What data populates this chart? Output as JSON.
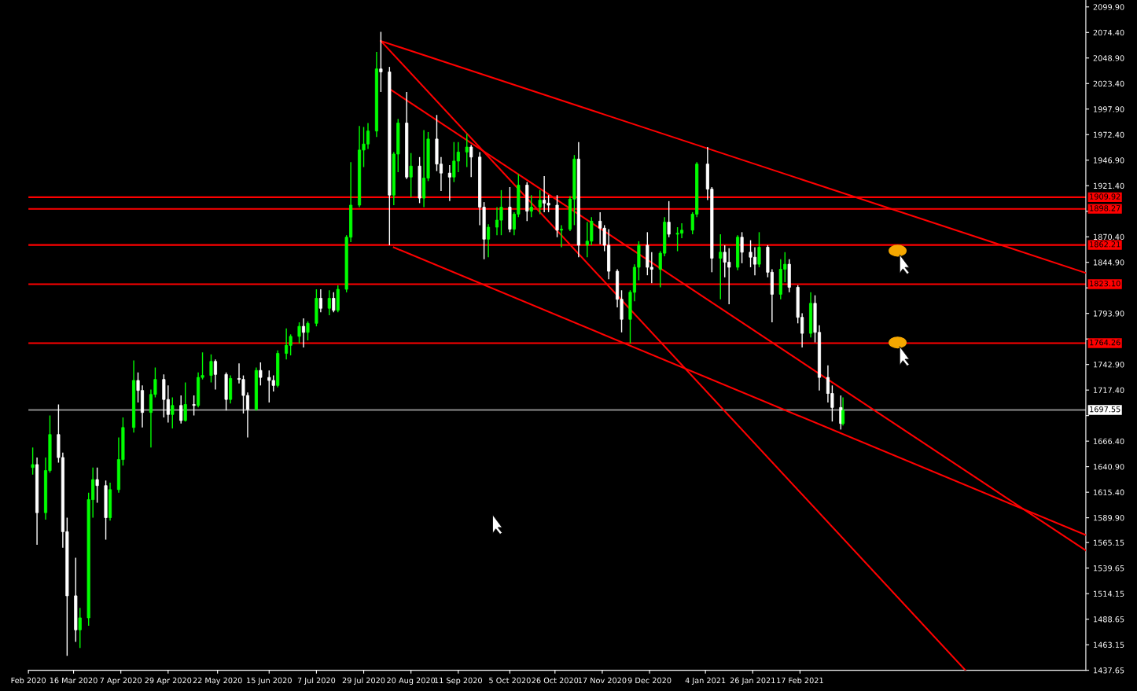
{
  "chart_data": {
    "type": "candlestick",
    "x": [
      "2020-02-26",
      "2020-02-28",
      "2020-03-03",
      "2020-03-05",
      "2020-03-09",
      "2020-03-11",
      "2020-03-13",
      "2020-03-17",
      "2020-03-19",
      "2020-03-23",
      "2020-03-25",
      "2020-03-27",
      "2020-03-31",
      "2020-04-02",
      "2020-04-06",
      "2020-04-08",
      "2020-04-13",
      "2020-04-15",
      "2020-04-17",
      "2020-04-21",
      "2020-04-23",
      "2020-04-27",
      "2020-04-29",
      "2020-05-01",
      "2020-05-05",
      "2020-05-07",
      "2020-05-11",
      "2020-05-13",
      "2020-05-15",
      "2020-05-19",
      "2020-05-21",
      "2020-05-26",
      "2020-05-28",
      "2020-06-01",
      "2020-06-03",
      "2020-06-05",
      "2020-06-09",
      "2020-06-11",
      "2020-06-15",
      "2020-06-17",
      "2020-06-19",
      "2020-06-23",
      "2020-06-25",
      "2020-06-29",
      "2020-07-01",
      "2020-07-03",
      "2020-07-07",
      "2020-07-09",
      "2020-07-13",
      "2020-07-15",
      "2020-07-17",
      "2020-07-21",
      "2020-07-23",
      "2020-07-27",
      "2020-07-29",
      "2020-07-31",
      "2020-08-04",
      "2020-08-06",
      "2020-08-10",
      "2020-08-12",
      "2020-08-14",
      "2020-08-18",
      "2020-08-20",
      "2020-08-24",
      "2020-08-26",
      "2020-08-28",
      "2020-09-01",
      "2020-09-03",
      "2020-09-07",
      "2020-09-09",
      "2020-09-11",
      "2020-09-15",
      "2020-09-17",
      "2020-09-21",
      "2020-09-23",
      "2020-09-25",
      "2020-09-29",
      "2020-10-01",
      "2020-10-05",
      "2020-10-07",
      "2020-10-09",
      "2020-10-13",
      "2020-10-15",
      "2020-10-19",
      "2020-10-21",
      "2020-10-23",
      "2020-10-27",
      "2020-10-29",
      "2020-11-02",
      "2020-11-04",
      "2020-11-06",
      "2020-11-10",
      "2020-11-12",
      "2020-11-16",
      "2020-11-18",
      "2020-11-20",
      "2020-11-24",
      "2020-11-26",
      "2020-11-30",
      "2020-12-02",
      "2020-12-04",
      "2020-12-08",
      "2020-12-10",
      "2020-12-14",
      "2020-12-16",
      "2020-12-18",
      "2020-12-22",
      "2020-12-24",
      "2020-12-29",
      "2020-12-31",
      "2021-01-05",
      "2021-01-07",
      "2021-01-11",
      "2021-01-13",
      "2021-01-15",
      "2021-01-19",
      "2021-01-21",
      "2021-01-25",
      "2021-01-27",
      "2021-01-29",
      "2021-02-02",
      "2021-02-04",
      "2021-02-08",
      "2021-02-10",
      "2021-02-12",
      "2021-02-16",
      "2021-02-18",
      "2021-02-22",
      "2021-02-24",
      "2021-02-26",
      "2021-03-02",
      "2021-03-04",
      "2021-03-08",
      "2021-03-09"
    ],
    "ohlc": [
      [
        1640,
        1660,
        1633,
        1643
      ],
      [
        1643,
        1650,
        1563,
        1595
      ],
      [
        1595,
        1650,
        1588,
        1637
      ],
      [
        1637,
        1692,
        1635,
        1673
      ],
      [
        1673,
        1703,
        1645,
        1650
      ],
      [
        1650,
        1655,
        1560,
        1576
      ],
      [
        1576,
        1590,
        1452,
        1512
      ],
      [
        1512,
        1550,
        1466,
        1478
      ],
      [
        1478,
        1500,
        1460,
        1490
      ],
      [
        1490,
        1615,
        1482,
        1608
      ],
      [
        1608,
        1640,
        1590,
        1628
      ],
      [
        1628,
        1640,
        1605,
        1622
      ],
      [
        1622,
        1627,
        1568,
        1590
      ],
      [
        1590,
        1625,
        1587,
        1618
      ],
      [
        1618,
        1670,
        1615,
        1648
      ],
      [
        1648,
        1690,
        1642,
        1680
      ],
      [
        1680,
        1747,
        1675,
        1727
      ],
      [
        1727,
        1735,
        1705,
        1717
      ],
      [
        1717,
        1722,
        1680,
        1695
      ],
      [
        1695,
        1718,
        1660,
        1713
      ],
      [
        1713,
        1740,
        1710,
        1728
      ],
      [
        1728,
        1733,
        1690,
        1708
      ],
      [
        1708,
        1722,
        1685,
        1693
      ],
      [
        1693,
        1710,
        1679,
        1702
      ],
      [
        1702,
        1712,
        1684,
        1687
      ],
      [
        1687,
        1725,
        1686,
        1703
      ],
      [
        1703,
        1712,
        1692,
        1702
      ],
      [
        1702,
        1735,
        1700,
        1730
      ],
      [
        1730,
        1755,
        1728,
        1732
      ],
      [
        1732,
        1753,
        1725,
        1746
      ],
      [
        1746,
        1748,
        1718,
        1733
      ],
      [
        1733,
        1735,
        1697,
        1708
      ],
      [
        1708,
        1732,
        1704,
        1729
      ],
      [
        1729,
        1744,
        1724,
        1728
      ],
      [
        1728,
        1732,
        1694,
        1712
      ],
      [
        1712,
        1715,
        1670,
        1698
      ],
      [
        1698,
        1740,
        1697,
        1737
      ],
      [
        1737,
        1745,
        1722,
        1730
      ],
      [
        1730,
        1737,
        1705,
        1727
      ],
      [
        1727,
        1732,
        1716,
        1722
      ],
      [
        1722,
        1757,
        1720,
        1754
      ],
      [
        1754,
        1779,
        1748,
        1762
      ],
      [
        1762,
        1773,
        1752,
        1771
      ],
      [
        1771,
        1785,
        1764,
        1781
      ],
      [
        1781,
        1789,
        1760,
        1775
      ],
      [
        1775,
        1786,
        1767,
        1784
      ],
      [
        1784,
        1818,
        1781,
        1809
      ],
      [
        1809,
        1818,
        1795,
        1799
      ],
      [
        1799,
        1817,
        1792,
        1809
      ],
      [
        1809,
        1815,
        1795,
        1797
      ],
      [
        1797,
        1822,
        1795,
        1818
      ],
      [
        1818,
        1872,
        1815,
        1870
      ],
      [
        1870,
        1945,
        1865,
        1902
      ],
      [
        1902,
        1981,
        1900,
        1957
      ],
      [
        1957,
        1980,
        1940,
        1963
      ],
      [
        1963,
        1984,
        1958,
        1976
      ],
      [
        1976,
        2055,
        1970,
        2038
      ],
      [
        2038,
        2075,
        2015,
        2035
      ],
      [
        2035,
        2040,
        1862,
        1912
      ],
      [
        1912,
        1955,
        1902,
        1953
      ],
      [
        1953,
        1988,
        1935,
        1984
      ],
      [
        1984,
        2015,
        1928,
        1930
      ],
      [
        1930,
        1954,
        1910,
        1941
      ],
      [
        1941,
        1950,
        1904,
        1909
      ],
      [
        1909,
        1977,
        1900,
        1929
      ],
      [
        1929,
        1975,
        1926,
        1968
      ],
      [
        1968,
        1992,
        1936,
        1943
      ],
      [
        1943,
        1950,
        1916,
        1934
      ],
      [
        1934,
        1942,
        1906,
        1930
      ],
      [
        1930,
        1965,
        1925,
        1946
      ],
      [
        1946,
        1965,
        1935,
        1955
      ],
      [
        1955,
        1973,
        1940,
        1960
      ],
      [
        1960,
        1962,
        1930,
        1950
      ],
      [
        1950,
        1955,
        1882,
        1900
      ],
      [
        1900,
        1905,
        1848,
        1868
      ],
      [
        1868,
        1883,
        1850,
        1880
      ],
      [
        1880,
        1900,
        1872,
        1887
      ],
      [
        1887,
        1917,
        1872,
        1900
      ],
      [
        1900,
        1920,
        1875,
        1878
      ],
      [
        1878,
        1895,
        1872,
        1893
      ],
      [
        1893,
        1933,
        1890,
        1922
      ],
      [
        1922,
        1925,
        1886,
        1896
      ],
      [
        1896,
        1912,
        1890,
        1900
      ],
      [
        1900,
        1917,
        1893,
        1907
      ],
      [
        1907,
        1931,
        1895,
        1904
      ],
      [
        1904,
        1912,
        1895,
        1902
      ],
      [
        1902,
        1912,
        1870,
        1877
      ],
      [
        1877,
        1882,
        1860,
        1878
      ],
      [
        1878,
        1911,
        1876,
        1908
      ],
      [
        1908,
        1952,
        1882,
        1948
      ],
      [
        1948,
        1965,
        1850,
        1862
      ],
      [
        1862,
        1885,
        1850,
        1866
      ],
      [
        1866,
        1890,
        1862,
        1886
      ],
      [
        1886,
        1895,
        1863,
        1879
      ],
      [
        1879,
        1882,
        1856,
        1862
      ],
      [
        1862,
        1878,
        1828,
        1836
      ],
      [
        1836,
        1838,
        1800,
        1808
      ],
      [
        1808,
        1817,
        1775,
        1788
      ],
      [
        1788,
        1817,
        1764,
        1815
      ],
      [
        1815,
        1843,
        1806,
        1840
      ],
      [
        1840,
        1866,
        1827,
        1862
      ],
      [
        1862,
        1875,
        1832,
        1840
      ],
      [
        1840,
        1855,
        1824,
        1838
      ],
      [
        1838,
        1856,
        1820,
        1854
      ],
      [
        1854,
        1890,
        1851,
        1885
      ],
      [
        1885,
        1906,
        1870,
        1873
      ],
      [
        1873,
        1880,
        1856,
        1874
      ],
      [
        1874,
        1884,
        1869,
        1877
      ],
      [
        1877,
        1895,
        1873,
        1893
      ],
      [
        1893,
        1945,
        1890,
        1943
      ],
      [
        1943,
        1960,
        1907,
        1918
      ],
      [
        1918,
        1920,
        1835,
        1849
      ],
      [
        1849,
        1873,
        1808,
        1855
      ],
      [
        1855,
        1862,
        1830,
        1845
      ],
      [
        1845,
        1859,
        1803,
        1840
      ],
      [
        1840,
        1872,
        1837,
        1870
      ],
      [
        1870,
        1875,
        1844,
        1855
      ],
      [
        1855,
        1867,
        1840,
        1850
      ],
      [
        1850,
        1860,
        1832,
        1843
      ],
      [
        1843,
        1875,
        1840,
        1860
      ],
      [
        1860,
        1862,
        1830,
        1835
      ],
      [
        1835,
        1838,
        1785,
        1813
      ],
      [
        1813,
        1848,
        1808,
        1838
      ],
      [
        1838,
        1855,
        1825,
        1843
      ],
      [
        1843,
        1848,
        1815,
        1820
      ],
      [
        1820,
        1822,
        1784,
        1790
      ],
      [
        1790,
        1794,
        1760,
        1774
      ],
      [
        1774,
        1815,
        1770,
        1804
      ],
      [
        1804,
        1812,
        1765,
        1775
      ],
      [
        1775,
        1782,
        1717,
        1730
      ],
      [
        1730,
        1742,
        1705,
        1714
      ],
      [
        1714,
        1722,
        1686,
        1700
      ],
      [
        1700,
        1712,
        1678,
        1684
      ],
      [
        1684,
        1710,
        1682,
        1697
      ]
    ],
    "colors": [
      "#00ff00",
      "#ffffff",
      "#00ff00",
      "#00ff00",
      "#ffffff",
      "#ffffff",
      "#ffffff",
      "#ffffff",
      "#00ff00",
      "#00ff00",
      "#00ff00",
      "#ffffff",
      "#ffffff",
      "#00ff00",
      "#00ff00",
      "#00ff00",
      "#00ff00",
      "#ffffff",
      "#ffffff",
      "#00ff00",
      "#00ff00",
      "#ffffff",
      "#ffffff",
      "#00ff00",
      "#ffffff",
      "#00ff00",
      "#ffffff",
      "#00ff00",
      "#00ff00",
      "#00ff00",
      "#ffffff",
      "#ffffff",
      "#00ff00",
      "#ffffff",
      "#ffffff",
      "#ffffff",
      "#00ff00",
      "#ffffff",
      "#ffffff",
      "#ffffff",
      "#00ff00",
      "#00ff00",
      "#00ff00",
      "#00ff00",
      "#ffffff",
      "#00ff00",
      "#00ff00",
      "#ffffff",
      "#00ff00",
      "#ffffff",
      "#00ff00",
      "#00ff00",
      "#00ff00",
      "#00ff00",
      "#00ff00",
      "#00ff00",
      "#00ff00",
      "#ffffff",
      "#ffffff",
      "#00ff00",
      "#00ff00",
      "#ffffff",
      "#00ff00",
      "#ffffff",
      "#00ff00",
      "#00ff00",
      "#ffffff",
      "#ffffff",
      "#ffffff",
      "#00ff00",
      "#00ff00",
      "#00ff00",
      "#ffffff",
      "#ffffff",
      "#ffffff",
      "#00ff00",
      "#00ff00",
      "#00ff00",
      "#ffffff",
      "#00ff00",
      "#00ff00",
      "#ffffff",
      "#00ff00",
      "#00ff00",
      "#ffffff",
      "#ffffff",
      "#ffffff",
      "#00ff00",
      "#00ff00",
      "#00ff00",
      "#ffffff",
      "#00ff00",
      "#00ff00",
      "#ffffff",
      "#ffffff",
      "#ffffff",
      "#ffffff",
      "#ffffff",
      "#00ff00",
      "#00ff00",
      "#00ff00",
      "#ffffff",
      "#ffffff",
      "#00ff00",
      "#00ff00",
      "#ffffff",
      "#00ff00",
      "#00ff00",
      "#00ff00",
      "#00ff00",
      "#ffffff",
      "#ffffff",
      "#00ff00",
      "#ffffff",
      "#ffffff",
      "#00ff00",
      "#ffffff",
      "#ffffff",
      "#ffffff",
      "#00ff00",
      "#ffffff",
      "#ffffff",
      "#00ff00",
      "#00ff00",
      "#ffffff",
      "#ffffff",
      "#ffffff",
      "#00ff00",
      "#ffffff",
      "#ffffff",
      "#ffffff",
      "#ffffff",
      "#ffffff",
      "#00ff00"
    ],
    "series": [
      {
        "type": "line",
        "color": "#ff0000",
        "x": [
          "2020-08-06",
          "2021-06-30"
        ],
        "values": [
          2065.9,
          1834.3
        ]
      },
      {
        "type": "line",
        "color": "#ff0000",
        "x": [
          "2020-08-12",
          "2021-06-30"
        ],
        "values": [
          1859.8,
          1572.6
        ]
      },
      {
        "type": "line",
        "color": "#ff0000",
        "x": [
          "2020-08-06",
          "2021-05-05"
        ],
        "values": [
          2065.9,
          1437.65
        ]
      },
      {
        "type": "line",
        "color": "#ff0000",
        "x": [
          "2020-08-10",
          "2021-06-30"
        ],
        "values": [
          2018.1,
          1557.2
        ]
      }
    ],
    "ref_lines": [
      {
        "axis": "y",
        "value": 1909.92,
        "label": "1909.92",
        "color": "#ff0000"
      },
      {
        "axis": "y",
        "value": 1898.27,
        "label": "1898.27",
        "color": "#ff0000"
      },
      {
        "axis": "y",
        "value": 1862.21,
        "label": "1862.21",
        "color": "#ff0000"
      },
      {
        "axis": "y",
        "value": 1823.1,
        "label": "1823.10",
        "color": "#ff0000"
      },
      {
        "axis": "y",
        "value": 1764.26,
        "label": "1764.26",
        "color": "#ff0000"
      },
      {
        "axis": "y",
        "value": 1697.55,
        "label": "1697.55",
        "color": "#8c8c8c"
      }
    ],
    "xlim": [
      "2020-02-24",
      "2021-06-30"
    ],
    "xticks": [
      {
        "value": "2020-02-24",
        "label": "Feb 2020"
      },
      {
        "value": "2020-03-16",
        "label": "16 Mar 2020"
      },
      {
        "value": "2020-04-07",
        "label": "7 Apr 2020"
      },
      {
        "value": "2020-04-29",
        "label": "29 Apr 2020"
      },
      {
        "value": "2020-05-22",
        "label": "22 May 2020"
      },
      {
        "value": "2020-06-15",
        "label": "15 Jun 2020"
      },
      {
        "value": "2020-07-07",
        "label": "7 Jul 2020"
      },
      {
        "value": "2020-07-29",
        "label": "29 Jul 2020"
      },
      {
        "value": "2020-08-20",
        "label": "20 Aug 2020"
      },
      {
        "value": "2020-09-11",
        "label": "11 Sep 2020"
      },
      {
        "value": "2020-10-05",
        "label": "5 Oct 2020"
      },
      {
        "value": "2020-10-26",
        "label": "26 Oct 2020"
      },
      {
        "value": "2020-11-17",
        "label": "17 Nov 2020"
      },
      {
        "value": "2020-12-09",
        "label": "9 Dec 2020"
      },
      {
        "value": "2021-01-04",
        "label": "4 Jan 2021"
      },
      {
        "value": "2021-01-26",
        "label": "26 Jan 2021"
      },
      {
        "value": "2021-02-17",
        "label": "17 Feb 2021"
      }
    ],
    "ylim": [
      1437.65,
      2106.8
    ],
    "yticks": [
      {
        "value": 2099.9,
        "label": "2099.90"
      },
      {
        "value": 2074.4,
        "label": "2074.40"
      },
      {
        "value": 2048.9,
        "label": "2048.90"
      },
      {
        "value": 2023.4,
        "label": "2023.40"
      },
      {
        "value": 1997.9,
        "label": "1997.90"
      },
      {
        "value": 1972.4,
        "label": "1972.40"
      },
      {
        "value": 1946.9,
        "label": "1946.90"
      },
      {
        "value": 1921.4,
        "label": "1921.40"
      },
      {
        "value": 1895.9,
        "label": null
      },
      {
        "value": 1870.4,
        "label": "1870.40"
      },
      {
        "value": 1844.9,
        "label": "1844.90"
      },
      {
        "value": 1819.4,
        "label": null
      },
      {
        "value": 1793.9,
        "label": "1793.90"
      },
      {
        "value": 1768.4,
        "label": null
      },
      {
        "value": 1742.9,
        "label": "1742.90"
      },
      {
        "value": 1717.4,
        "label": "1717.40"
      },
      {
        "value": 1691.9,
        "label": null
      },
      {
        "value": 1666.4,
        "label": "1666.40"
      },
      {
        "value": 1640.9,
        "label": "1640.90"
      },
      {
        "value": 1615.4,
        "label": "1615.40"
      },
      {
        "value": 1589.9,
        "label": "1589.90"
      },
      {
        "value": 1565.15,
        "label": "1565.15"
      },
      {
        "value": 1539.65,
        "label": "1539.65"
      },
      {
        "value": 1514.15,
        "label": "1514.15"
      },
      {
        "value": 1488.65,
        "label": "1488.65"
      },
      {
        "value": 1463.15,
        "label": "1463.15"
      },
      {
        "value": 1437.65,
        "label": "1437.65"
      }
    ],
    "grid": false
  }
}
